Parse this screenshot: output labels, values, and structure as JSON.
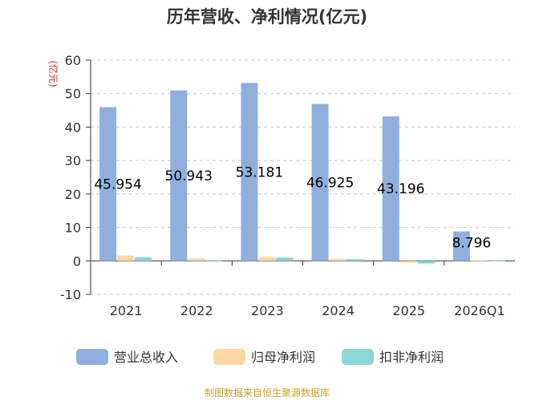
{
  "chart_data": {
    "type": "bar",
    "title": "历年营收、净利情况(亿元)",
    "unit_label": "(亿元)",
    "categories": [
      "2021",
      "2022",
      "2023",
      "2024",
      "2025",
      "2026Q1"
    ],
    "series": [
      {
        "name": "营业总收入",
        "color": "#8fb0dd",
        "values": [
          45.954,
          50.943,
          53.181,
          46.925,
          43.196,
          8.796
        ]
      },
      {
        "name": "归母净利润",
        "color": "#fcd9a3",
        "values": [
          1.6,
          0.7,
          1.2,
          0.6,
          -0.5,
          0.2
        ]
      },
      {
        "name": "扣非净利润",
        "color": "#8dd6d6",
        "values": [
          1.1,
          0.2,
          1.0,
          0.5,
          -0.8,
          0.1
        ]
      }
    ],
    "data_labels": [
      "45.954",
      "50.943",
      "53.181",
      "46.925",
      "43.196",
      "8.796"
    ],
    "yticks": [
      60,
      50,
      40,
      30,
      20,
      10,
      0,
      -10
    ],
    "ylim": [
      -10,
      60
    ],
    "grid": true,
    "legend_position": "bottom"
  },
  "footer": {
    "source": "制图数据来自恒生聚源数据库"
  }
}
